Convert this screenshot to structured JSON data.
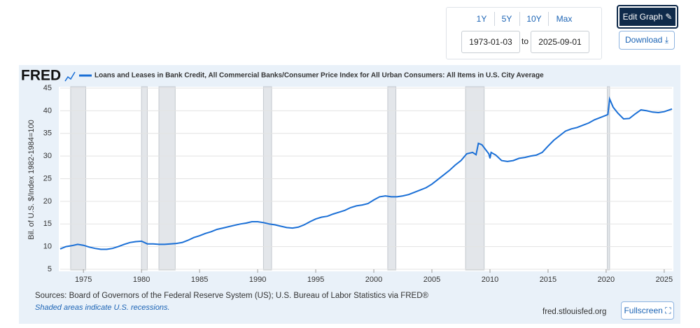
{
  "controls": {
    "ranges": [
      "1Y",
      "5Y",
      "10Y",
      "Max"
    ],
    "start_date": "1973-01-03",
    "to": "to",
    "end_date": "2025-09-01",
    "edit_button": "Edit Graph",
    "download_button": "Download"
  },
  "chart_data": {
    "type": "line",
    "logo": "FRED",
    "y_label": "Bil. of U.S. $/Index 1982-1984=100",
    "x": [
      1973.0,
      1973.5,
      1974.0,
      1974.5,
      1975.0,
      1975.5,
      1976.0,
      1976.5,
      1977.0,
      1977.5,
      1978.0,
      1978.5,
      1979.0,
      1979.5,
      1980.0,
      1980.5,
      1981.0,
      1981.5,
      1982.0,
      1982.5,
      1983.0,
      1983.5,
      1984.0,
      1984.5,
      1985.0,
      1985.5,
      1986.0,
      1986.5,
      1987.0,
      1987.5,
      1988.0,
      1988.5,
      1989.0,
      1989.5,
      1990.0,
      1990.5,
      1991.0,
      1991.5,
      1992.0,
      1992.5,
      1993.0,
      1993.5,
      1994.0,
      1994.5,
      1995.0,
      1995.5,
      1996.0,
      1996.5,
      1997.0,
      1997.5,
      1998.0,
      1998.5,
      1999.0,
      1999.5,
      2000.0,
      2000.5,
      2001.0,
      2001.5,
      2002.0,
      2002.5,
      2003.0,
      2003.5,
      2004.0,
      2004.5,
      2005.0,
      2005.5,
      2006.0,
      2006.5,
      2007.0,
      2007.5,
      2008.0,
      2008.5,
      2008.8,
      2009.0,
      2009.3,
      2009.6,
      2009.9,
      2010.0,
      2010.1,
      2010.5,
      2011.0,
      2011.5,
      2012.0,
      2012.5,
      2013.0,
      2013.5,
      2014.0,
      2014.5,
      2015.0,
      2015.5,
      2016.0,
      2016.5,
      2017.0,
      2017.5,
      2018.0,
      2018.5,
      2019.0,
      2019.5,
      2020.0,
      2020.15,
      2020.3,
      2020.6,
      2021.0,
      2021.5,
      2022.0,
      2022.5,
      2023.0,
      2023.5,
      2024.0,
      2024.5,
      2025.0,
      2025.67
    ],
    "series": [
      {
        "name": "Loans and Leases in Bank Credit, All Commercial Banks/Consumer Price Index for All Urban Consumers: All Items in U.S. City Average",
        "color": "#1a6fd6",
        "values": [
          9.5,
          10.0,
          10.2,
          10.5,
          10.3,
          9.9,
          9.6,
          9.4,
          9.4,
          9.6,
          10.0,
          10.5,
          10.9,
          11.1,
          11.2,
          10.6,
          10.6,
          10.5,
          10.5,
          10.6,
          10.7,
          10.9,
          11.4,
          12.0,
          12.4,
          12.9,
          13.3,
          13.8,
          14.1,
          14.4,
          14.7,
          15.0,
          15.2,
          15.5,
          15.5,
          15.3,
          15.0,
          14.8,
          14.5,
          14.2,
          14.1,
          14.3,
          14.8,
          15.5,
          16.1,
          16.5,
          16.7,
          17.2,
          17.6,
          18.0,
          18.6,
          19.0,
          19.2,
          19.5,
          20.3,
          21.0,
          21.2,
          21.0,
          21.0,
          21.2,
          21.5,
          22.0,
          22.5,
          23.0,
          23.8,
          24.8,
          25.8,
          26.8,
          28.0,
          29.0,
          30.5,
          30.8,
          30.3,
          32.8,
          32.5,
          31.5,
          30.5,
          29.5,
          30.8,
          30.2,
          29.0,
          28.8,
          29.0,
          29.5,
          29.7,
          30.0,
          30.2,
          30.8,
          32.2,
          33.5,
          34.5,
          35.5,
          36.0,
          36.3,
          36.8,
          37.3,
          38.0,
          38.5,
          39.0,
          39.2,
          42.6,
          40.8,
          39.5,
          38.2,
          38.3,
          39.3,
          40.2,
          40.0,
          39.7,
          39.6,
          39.8,
          40.4
        ]
      }
    ],
    "xlim": [
      1973.0,
      2025.67
    ],
    "xticks": [
      1975,
      1980,
      1985,
      1990,
      1995,
      2000,
      2005,
      2010,
      2015,
      2020,
      2025
    ],
    "ylim": [
      5,
      45
    ],
    "yticks": [
      5,
      10,
      15,
      20,
      25,
      30,
      35,
      40,
      45
    ],
    "grid": true,
    "recessions": [
      [
        1973.9,
        1975.2
      ],
      [
        1980.0,
        1980.5
      ],
      [
        1981.5,
        1982.9
      ],
      [
        1990.5,
        1991.2
      ],
      [
        2001.2,
        2001.9
      ],
      [
        2007.9,
        2009.5
      ],
      [
        2020.1,
        2020.3
      ]
    ],
    "source": "Sources: Board of Governors of the Federal Reserve System (US); U.S. Bureau of Labor Statistics via FRED®",
    "recession_note": "Shaded areas indicate U.S. recessions.",
    "site": "fred.stlouisfed.org",
    "fullscreen_button": "Fullscreen"
  }
}
